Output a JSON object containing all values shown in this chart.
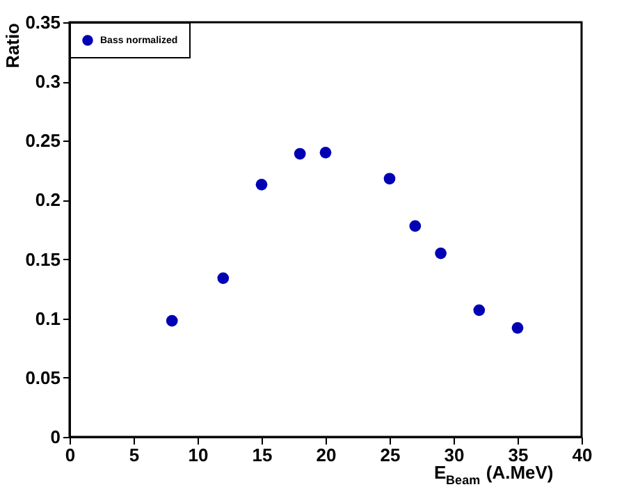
{
  "chart_data": {
    "type": "scatter",
    "xlabel": "E$_{Beam}$ (A.MeV)",
    "ylabel": "Ratio",
    "x": [
      8,
      12,
      15,
      18,
      20,
      25,
      27,
      29,
      32,
      35
    ],
    "series": [
      {
        "name": "Bass normalized",
        "color": "#0000b4",
        "values": [
          0.098,
          0.134,
          0.213,
          0.239,
          0.24,
          0.218,
          0.178,
          0.155,
          0.107,
          0.092
        ]
      }
    ],
    "xlim": [
      0,
      40
    ],
    "xticks": [
      0,
      5,
      10,
      15,
      20,
      25,
      30,
      35,
      40
    ],
    "ylim": [
      0,
      0.35
    ],
    "yticks": [
      0,
      0.05,
      0.1,
      0.15,
      0.2,
      0.25,
      0.3,
      0.35
    ],
    "grid": false,
    "legend": "top left",
    "marker": "circle"
  }
}
